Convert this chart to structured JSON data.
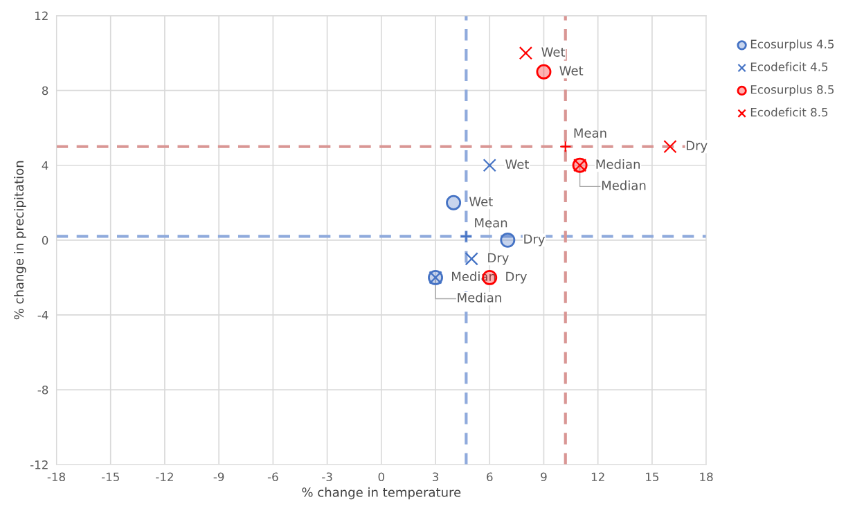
{
  "chart_data": {
    "type": "scatter",
    "xlabel": "% change in temperature",
    "ylabel": "% change in precipitation",
    "xlim": [
      -18,
      18
    ],
    "xticks": [
      -18,
      -15,
      -12,
      -9,
      -6,
      -3,
      0,
      3,
      6,
      9,
      12,
      15,
      18
    ],
    "ylim": [
      -12,
      12
    ],
    "yticks": [
      -12,
      -8,
      -4,
      0,
      4,
      8,
      12
    ],
    "grid": true,
    "legend": "right",
    "series": [
      {
        "name": "Ecosurplus 4.5",
        "color": "#4472c4",
        "marker": "circle",
        "x": [
          4,
          7,
          3
        ],
        "values": [
          2,
          0,
          -2
        ]
      },
      {
        "name": "Ecodeficit 4.5",
        "color": "#4472c4",
        "marker": "cross",
        "x": [
          6,
          5,
          3
        ],
        "values": [
          4,
          -1,
          -2
        ]
      },
      {
        "name": "Ecosurplus 8.5",
        "color": "#ff0000",
        "marker": "circle",
        "x": [
          9,
          6,
          11
        ],
        "values": [
          9,
          -2,
          4
        ]
      },
      {
        "name": "Ecodeficit 8.5",
        "color": "#ff0000",
        "marker": "cross",
        "x": [
          8,
          16,
          11
        ],
        "values": [
          10,
          5,
          4
        ]
      },
      {
        "color": "#4472c4",
        "marker": "plus",
        "x": [
          4.7
        ],
        "values": [
          0.2
        ]
      },
      {
        "color": "#ff0000",
        "marker": "plus",
        "x": [
          10.2
        ],
        "values": [
          5
        ]
      }
    ],
    "ref_lines": [
      {
        "axis": "x",
        "value": 4.7,
        "color": "#8faadc",
        "line_style": "dashed"
      },
      {
        "axis": "y",
        "value": 0.2,
        "color": "#8faadc",
        "line_style": "dashed"
      },
      {
        "axis": "x",
        "value": 10.2,
        "color": "#d99694",
        "line_style": "dashed"
      },
      {
        "axis": "y",
        "value": 5,
        "color": "#d99694",
        "line_style": "dashed"
      }
    ],
    "annotations": [
      {
        "text": "Wet",
        "x": 4,
        "y": 2
      },
      {
        "text": "Dry",
        "x": 7,
        "y": 0
      },
      {
        "text": "Median",
        "x": 3,
        "y": -2
      },
      {
        "text": "Wet",
        "x": 6,
        "y": 4
      },
      {
        "text": "Dry",
        "x": 5,
        "y": -1
      },
      {
        "text": "Median",
        "x": 3,
        "y": -2
      },
      {
        "text": "Wet",
        "x": 9,
        "y": 9
      },
      {
        "text": "Dry",
        "x": 6,
        "y": -2
      },
      {
        "text": "Median",
        "x": 11,
        "y": 4
      },
      {
        "text": "Wet",
        "x": 8,
        "y": 10
      },
      {
        "text": "Dry",
        "x": 16,
        "y": 5
      },
      {
        "text": "Median",
        "x": 11,
        "y": 4
      },
      {
        "text": "Mean",
        "x": 4.7,
        "y": 0.2
      },
      {
        "text": "Mean",
        "x": 10.2,
        "y": 5
      }
    ]
  }
}
